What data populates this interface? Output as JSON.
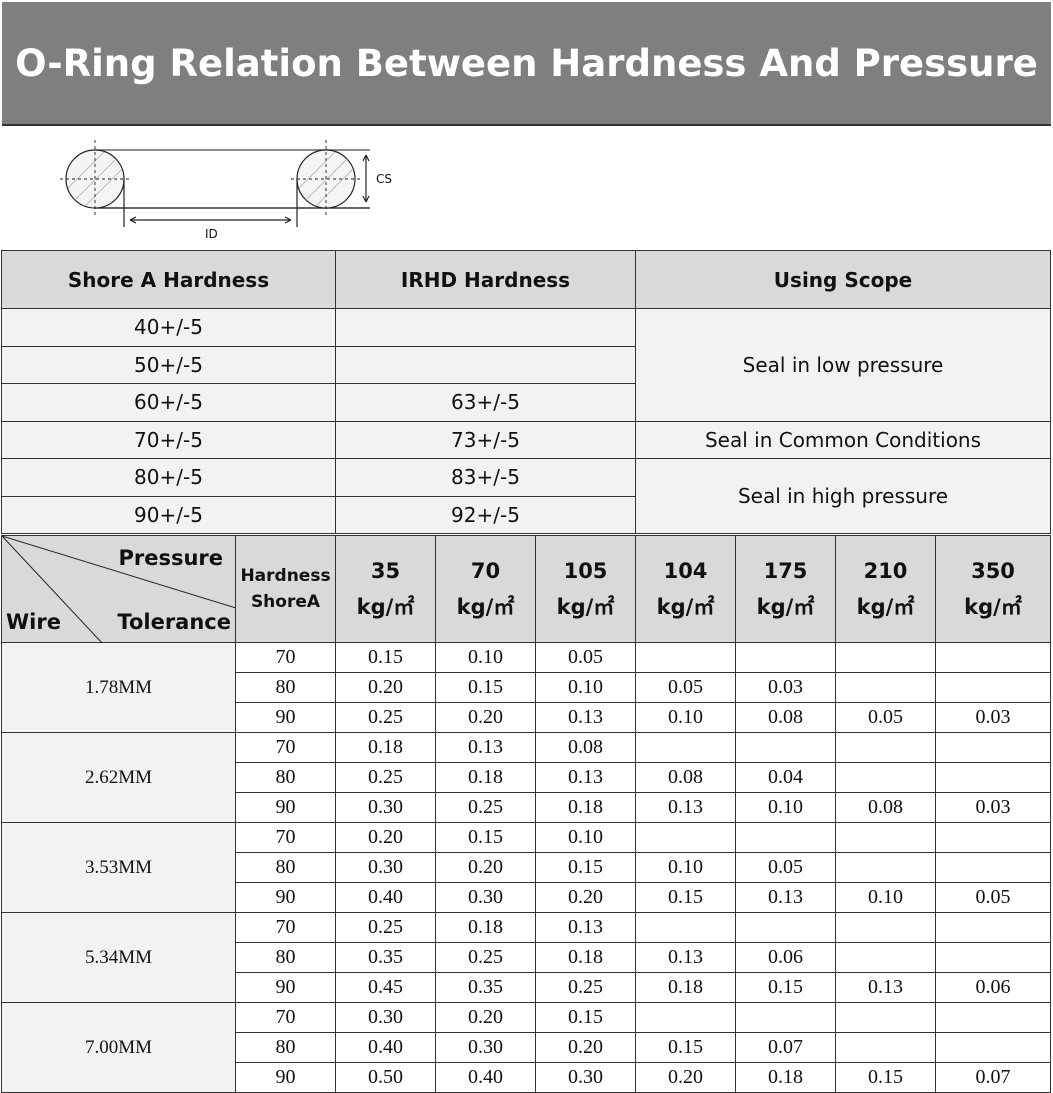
{
  "title": "O-Ring Relation Between Hardness And Pressure",
  "diagram": {
    "cs_label": "CS",
    "id_label": "ID"
  },
  "hardness_table": {
    "headers": [
      "Shore A Hardness",
      "IRHD Hardness",
      "Using Scope"
    ],
    "shore": [
      "40+/-5",
      "50+/-5",
      "60+/-5",
      "70+/-5",
      "80+/-5",
      "90+/-5"
    ],
    "irhd": [
      "",
      "",
      "63+/-5",
      "73+/-5",
      "83+/-5",
      "92+/-5"
    ],
    "scope": {
      "low": "Seal in low pressure",
      "common": "Seal in Common Conditions",
      "high": "Seal in high pressure"
    }
  },
  "tolerance_table": {
    "corner": {
      "pressure": "Pressure",
      "wire": "Wire",
      "tolerance": "Tolerance"
    },
    "hardness_header": [
      "Hardness",
      "ShoreA"
    ],
    "pressures": [
      "35",
      "70",
      "105",
      "104",
      "175",
      "210",
      "350"
    ],
    "unit": "kg/㎡",
    "groups": [
      {
        "wire": "1.78MM",
        "rows": [
          [
            "70",
            "0.15",
            "0.10",
            "0.05",
            "",
            "",
            "",
            ""
          ],
          [
            "80",
            "0.20",
            "0.15",
            "0.10",
            "0.05",
            "0.03",
            "",
            ""
          ],
          [
            "90",
            "0.25",
            "0.20",
            "0.13",
            "0.10",
            "0.08",
            "0.05",
            "0.03"
          ]
        ]
      },
      {
        "wire": "2.62MM",
        "rows": [
          [
            "70",
            "0.18",
            "0.13",
            "0.08",
            "",
            "",
            "",
            ""
          ],
          [
            "80",
            "0.25",
            "0.18",
            "0.13",
            "0.08",
            "0.04",
            "",
            ""
          ],
          [
            "90",
            "0.30",
            "0.25",
            "0.18",
            "0.13",
            "0.10",
            "0.08",
            "0.03"
          ]
        ]
      },
      {
        "wire": "3.53MM",
        "rows": [
          [
            "70",
            "0.20",
            "0.15",
            "0.10",
            "",
            "",
            "",
            ""
          ],
          [
            "80",
            "0.30",
            "0.20",
            "0.15",
            "0.10",
            "0.05",
            "",
            ""
          ],
          [
            "90",
            "0.40",
            "0.30",
            "0.20",
            "0.15",
            "0.13",
            "0.10",
            "0.05"
          ]
        ]
      },
      {
        "wire": "5.34MM",
        "rows": [
          [
            "70",
            "0.25",
            "0.18",
            "0.13",
            "",
            "",
            "",
            ""
          ],
          [
            "80",
            "0.35",
            "0.25",
            "0.18",
            "0.13",
            "0.06",
            "",
            ""
          ],
          [
            "90",
            "0.45",
            "0.35",
            "0.25",
            "0.18",
            "0.15",
            "0.13",
            "0.06"
          ]
        ]
      },
      {
        "wire": "7.00MM",
        "rows": [
          [
            "70",
            "0.30",
            "0.20",
            "0.15",
            "",
            "",
            "",
            ""
          ],
          [
            "80",
            "0.40",
            "0.30",
            "0.20",
            "0.15",
            "0.07",
            "",
            ""
          ],
          [
            "90",
            "0.50",
            "0.40",
            "0.30",
            "0.20",
            "0.18",
            "0.15",
            "0.07"
          ]
        ]
      }
    ]
  }
}
